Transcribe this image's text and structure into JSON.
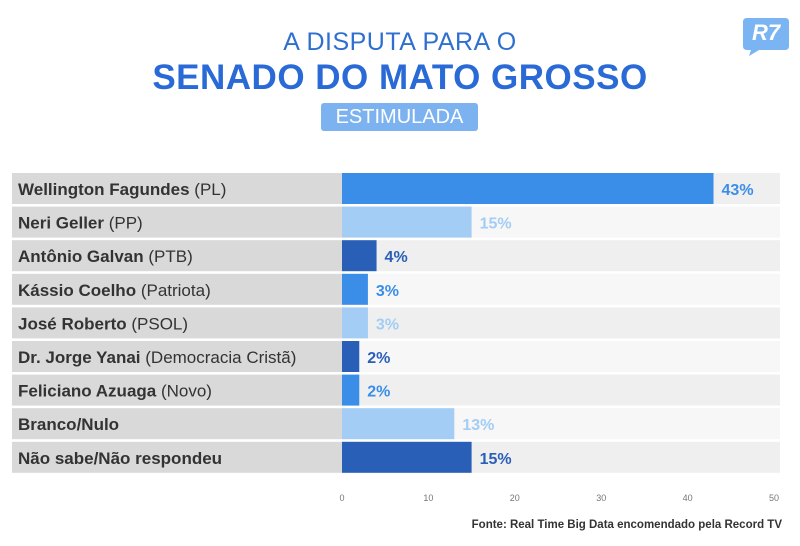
{
  "header": {
    "title_line1": "A DISPUTA PARA O",
    "title_line2": "SENADO DO MATO GROSSO",
    "badge": "ESTIMULADA",
    "logo": "R7"
  },
  "chart_data": {
    "type": "bar",
    "orientation": "horizontal",
    "categories": [
      {
        "name": "Wellington Fagundes",
        "party": " (PL)"
      },
      {
        "name": "Neri Geller",
        "party": " (PP)"
      },
      {
        "name": "Antônio Galvan",
        "party": " (PTB)"
      },
      {
        "name": "Kássio Coelho",
        "party": " (Patriota)"
      },
      {
        "name": "José Roberto",
        "party": " (PSOL)"
      },
      {
        "name": "Dr. Jorge Yanai",
        "party": " (Democracia Cristã)"
      },
      {
        "name": "Feliciano Azuaga",
        "party": " (Novo)"
      },
      {
        "name": "Branco/Nulo",
        "party": ""
      },
      {
        "name": "Não sabe/Não respondeu",
        "party": ""
      }
    ],
    "values": [
      43,
      15,
      4,
      3,
      3,
      2,
      2,
      13,
      15
    ],
    "value_labels": [
      "43%",
      "15%",
      "4%",
      "3%",
      "3%",
      "2%",
      "2%",
      "13%",
      "15%"
    ],
    "bar_colors": [
      "#3b8ee8",
      "#a3cdf5",
      "#2a5fb8",
      "#3b8ee8",
      "#a3cdf5",
      "#2a5fb8",
      "#3b8ee8",
      "#a3cdf5",
      "#2a5fb8"
    ],
    "label_colors": [
      "#3b8ee8",
      "#a3cdf5",
      "#2a5fb8",
      "#3b8ee8",
      "#a3cdf5",
      "#2a5fb8",
      "#3b8ee8",
      "#a3cdf5",
      "#2a5fb8"
    ],
    "xlim": [
      0,
      50
    ],
    "xticks": [
      0,
      10,
      20,
      30,
      40,
      50
    ],
    "grid": false
  },
  "footer": {
    "source": "Fonte: Real Time Big Data encomendado pela Record TV"
  }
}
